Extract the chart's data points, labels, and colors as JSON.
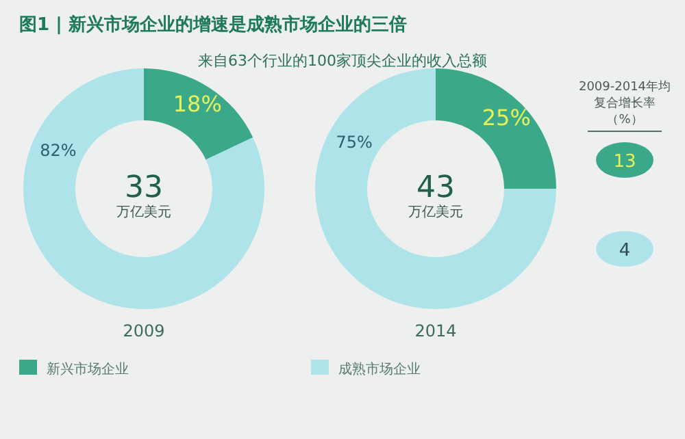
{
  "chart_data": [
    {
      "type": "donut",
      "title": "图1 | 新兴市场企业的增速是成熟市场企业的三倍",
      "subtitle": "来自63个行业的100家顶尖企业的收入总额",
      "xlabel": "2009",
      "categories": [
        "新兴市场企业",
        "成熟市场企业"
      ],
      "values": [
        18,
        82
      ],
      "colors": [
        "#3ba88a",
        "#aee3e9"
      ],
      "value_labels": [
        "18%",
        "82%"
      ],
      "annotations": [
        "33",
        "万亿美元"
      ],
      "legend": "bottom"
    },
    {
      "type": "donut",
      "xlabel": "2014",
      "categories": [
        null,
        null
      ],
      "values": [
        25,
        75
      ],
      "colors": [
        "#3ba88a",
        "#aee3e9"
      ],
      "value_labels": [
        "25%",
        "75%"
      ],
      "annotations": [
        "43",
        "万亿美元"
      ]
    },
    {
      "type": "other",
      "title": "2009-2014年均复合增长率（%）",
      "values": [
        13,
        4
      ],
      "colors": [
        "#3ba88a",
        "#aee3e9"
      ],
      "data_labels": true
    }
  ]
}
